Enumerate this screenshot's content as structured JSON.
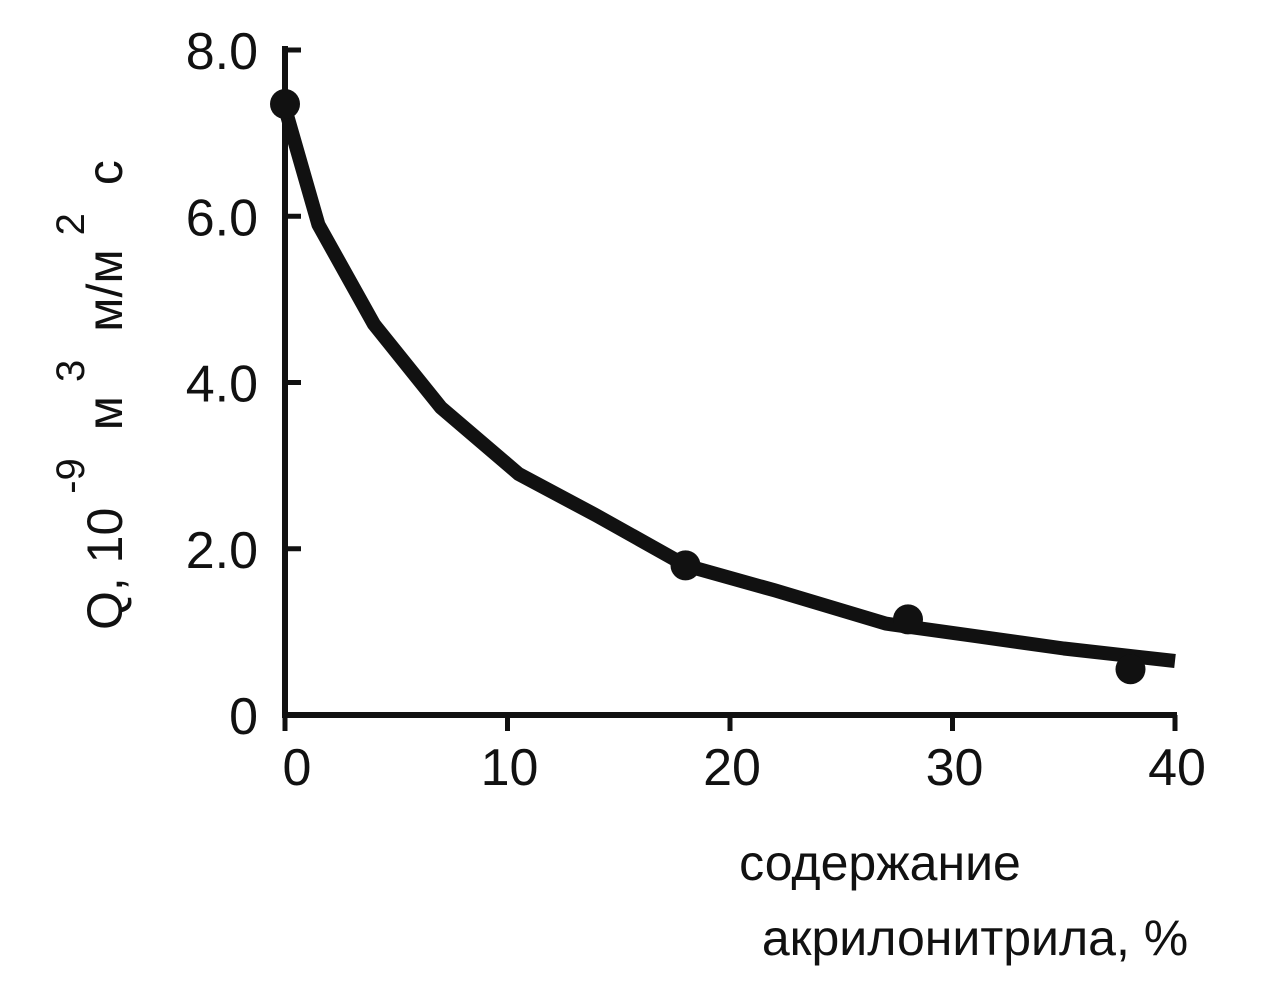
{
  "chart_data": {
    "type": "line",
    "title": "",
    "ylabel": {
      "main": "Q, 10",
      "exponent": "-9",
      "unit1": "м",
      "unit1_exponent": "3",
      "unit2": "м/м",
      "unit2_exponent": "2",
      "unit3": "с"
    },
    "xlabel_lines": [
      "содержание",
      "акрилонитрила, %"
    ],
    "xlim": [
      0,
      40
    ],
    "ylim": [
      0,
      8.0
    ],
    "x_ticks": [
      0,
      10,
      20,
      30,
      40
    ],
    "x_tick_labels": [
      "0",
      "10",
      "20",
      "30",
      "40"
    ],
    "y_ticks": [
      0,
      2.0,
      4.0,
      6.0,
      8.0
    ],
    "y_tick_labels": [
      "0",
      "2.0",
      "4.0",
      "6.0",
      "8.0"
    ],
    "grid": false,
    "series": [
      {
        "kind": "fit-curve",
        "color": "#111111",
        "points": [
          {
            "x": 0,
            "y": 7.3
          },
          {
            "x": 1.5,
            "y": 5.9
          },
          {
            "x": 4,
            "y": 4.7
          },
          {
            "x": 7,
            "y": 3.7
          },
          {
            "x": 10.5,
            "y": 2.9
          },
          {
            "x": 14,
            "y": 2.4
          },
          {
            "x": 18,
            "y": 1.8
          },
          {
            "x": 22,
            "y": 1.5
          },
          {
            "x": 27,
            "y": 1.1
          },
          {
            "x": 31,
            "y": 0.95
          },
          {
            "x": 35,
            "y": 0.8
          },
          {
            "x": 40,
            "y": 0.65
          }
        ]
      },
      {
        "kind": "markers",
        "color": "#111111",
        "points": [
          {
            "x": 0,
            "y": 7.35
          },
          {
            "x": 18,
            "y": 1.8
          },
          {
            "x": 28,
            "y": 1.15
          },
          {
            "x": 38,
            "y": 0.55
          }
        ]
      }
    ]
  }
}
